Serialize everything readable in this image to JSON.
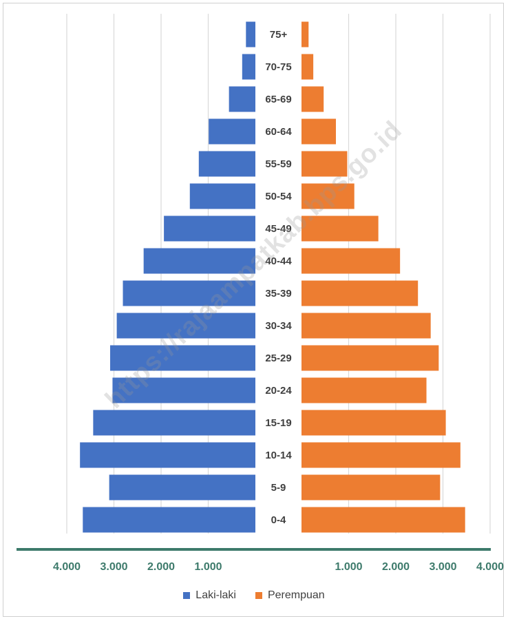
{
  "chart_data": {
    "type": "bar",
    "orientation": "horizontal-population-pyramid",
    "categories": [
      "75+",
      "70-75",
      "65-69",
      "60-64",
      "55-59",
      "50-54",
      "45-49",
      "40-44",
      "35-39",
      "30-34",
      "25-29",
      "20-24",
      "15-19",
      "10-14",
      "5-9",
      "0-4"
    ],
    "series": [
      {
        "name": "Laki-laki",
        "side": "left",
        "color": "#4472c4",
        "values": [
          200,
          280,
          560,
          990,
          1200,
          1390,
          1940,
          2370,
          2810,
          2940,
          3080,
          3030,
          3440,
          3720,
          3100,
          3660
        ]
      },
      {
        "name": "Perempuan",
        "side": "right",
        "color": "#ed7d31",
        "values": [
          150,
          250,
          470,
          730,
          970,
          1120,
          1630,
          2090,
          2470,
          2740,
          2910,
          2650,
          3060,
          3370,
          2940,
          3470
        ]
      }
    ],
    "xlim": [
      0,
      4000
    ],
    "x_ticks_left": [
      "4.000",
      "3.000",
      "2.000",
      "1.000"
    ],
    "x_ticks_right": [
      "1.000",
      "2.000",
      "3.000",
      "4.000"
    ],
    "axis_color": "#3d7a6b",
    "tick_label_color": "#3d7a6b",
    "grid": true,
    "legend_position": "bottom"
  },
  "legend": {
    "male": "Laki-laki",
    "female": "Perempuan"
  },
  "watermark": "https://rajaampatkab.bps.go.id"
}
